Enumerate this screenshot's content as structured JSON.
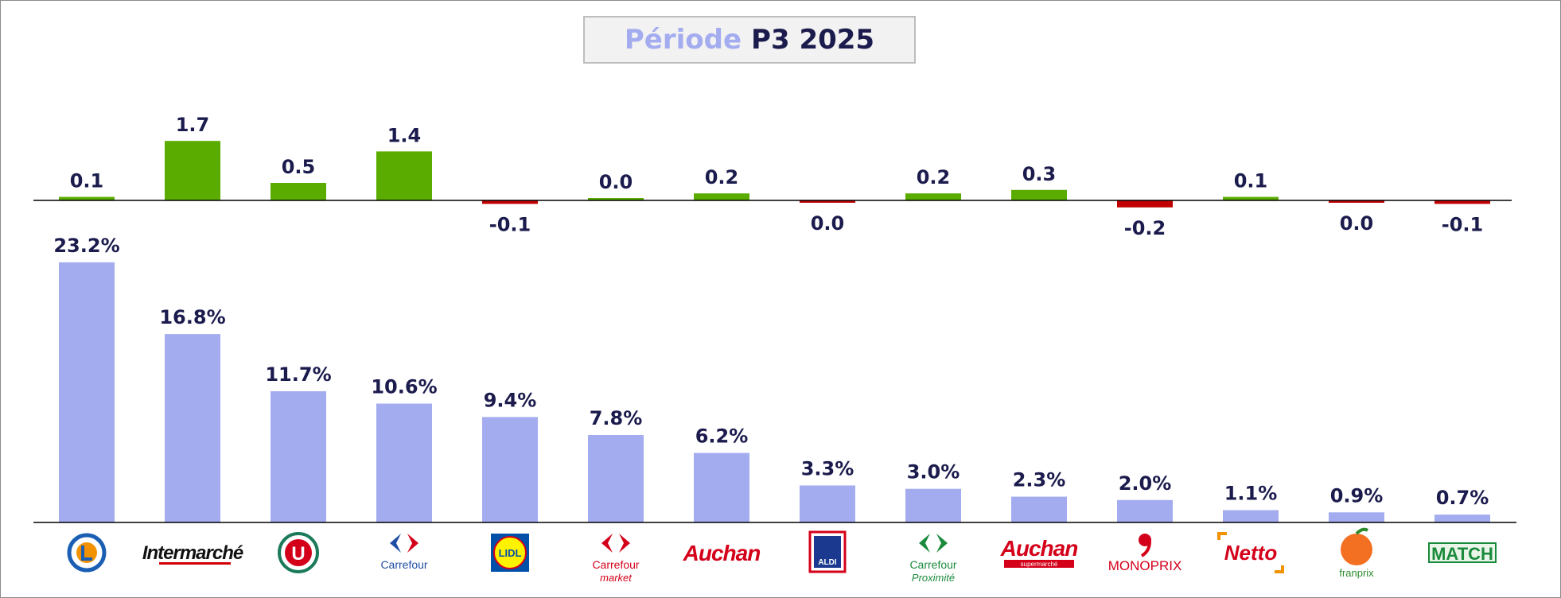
{
  "title": {
    "prefix": "Période",
    "value": "P3 2025"
  },
  "colors": {
    "share_bar": "#a4acf0",
    "positive": "#5aad00",
    "negative": "#c00000",
    "label": "#1b1b4d"
  },
  "chart_data": [
    {
      "type": "bar",
      "role": "evolution",
      "categories": [
        "E.Leclerc",
        "Intermarché",
        "Système U",
        "Carrefour",
        "Lidl",
        "Carrefour Market",
        "Auchan",
        "Aldi",
        "Carrefour Proximité",
        "Auchan Supermarché",
        "Monoprix",
        "Netto",
        "Franprix",
        "Match"
      ],
      "values": [
        0.1,
        1.7,
        0.5,
        1.4,
        -0.1,
        0.0,
        0.2,
        0.0,
        0.2,
        0.3,
        -0.2,
        0.1,
        0.0,
        -0.1
      ],
      "labels": [
        "0.1",
        "1.7",
        "0.5",
        "1.4",
        "-0.1",
        "0.0",
        "0.2",
        "0.0",
        "0.2",
        "0.3",
        "-0.2",
        "0.1",
        "0.0",
        "-0.1"
      ],
      "signs": [
        "pos",
        "pos",
        "pos",
        "pos",
        "neg",
        "pos",
        "pos",
        "neg",
        "pos",
        "pos",
        "neg",
        "pos",
        "neg",
        "neg"
      ],
      "ylim": [
        -0.4,
        2.0
      ]
    },
    {
      "type": "bar",
      "role": "share",
      "categories": [
        "E.Leclerc",
        "Intermarché",
        "Système U",
        "Carrefour",
        "Lidl",
        "Carrefour Market",
        "Auchan",
        "Aldi",
        "Carrefour Proximité",
        "Auchan Supermarché",
        "Monoprix",
        "Netto",
        "Franprix",
        "Match"
      ],
      "values": [
        23.2,
        16.8,
        11.7,
        10.6,
        9.4,
        7.8,
        6.2,
        3.3,
        3.0,
        2.3,
        2.0,
        1.1,
        0.9,
        0.7
      ],
      "labels": [
        "23.2%",
        "16.8%",
        "11.7%",
        "10.6%",
        "9.4%",
        "7.8%",
        "6.2%",
        "3.3%",
        "3.0%",
        "2.3%",
        "2.0%",
        "1.1%",
        "0.9%",
        "0.7%"
      ],
      "ylim": [
        0,
        25
      ]
    }
  ],
  "logos": [
    {
      "icon": "leclerc-logo",
      "text": ""
    },
    {
      "icon": "intermarche-logo",
      "text": "Intermarché"
    },
    {
      "icon": "systeme-u-logo",
      "text": "U"
    },
    {
      "icon": "carrefour-logo",
      "text": "Carrefour"
    },
    {
      "icon": "lidl-logo",
      "text": "LIDL"
    },
    {
      "icon": "carrefour-market-logo",
      "text": "Carrefour",
      "sub": "market"
    },
    {
      "icon": "auchan-logo",
      "text": "Auchan"
    },
    {
      "icon": "aldi-logo",
      "text": "ALDI"
    },
    {
      "icon": "carrefour-proximite-logo",
      "text": "Carrefour",
      "sub": "Proximité"
    },
    {
      "icon": "auchan-supermarche-logo",
      "text": "Auchan",
      "sub": "supermarché"
    },
    {
      "icon": "monoprix-logo",
      "text": "MONOPRIX"
    },
    {
      "icon": "netto-logo",
      "text": "Netto"
    },
    {
      "icon": "franprix-logo",
      "text": "franprix"
    },
    {
      "icon": "match-logo",
      "text": "MATCH"
    }
  ]
}
